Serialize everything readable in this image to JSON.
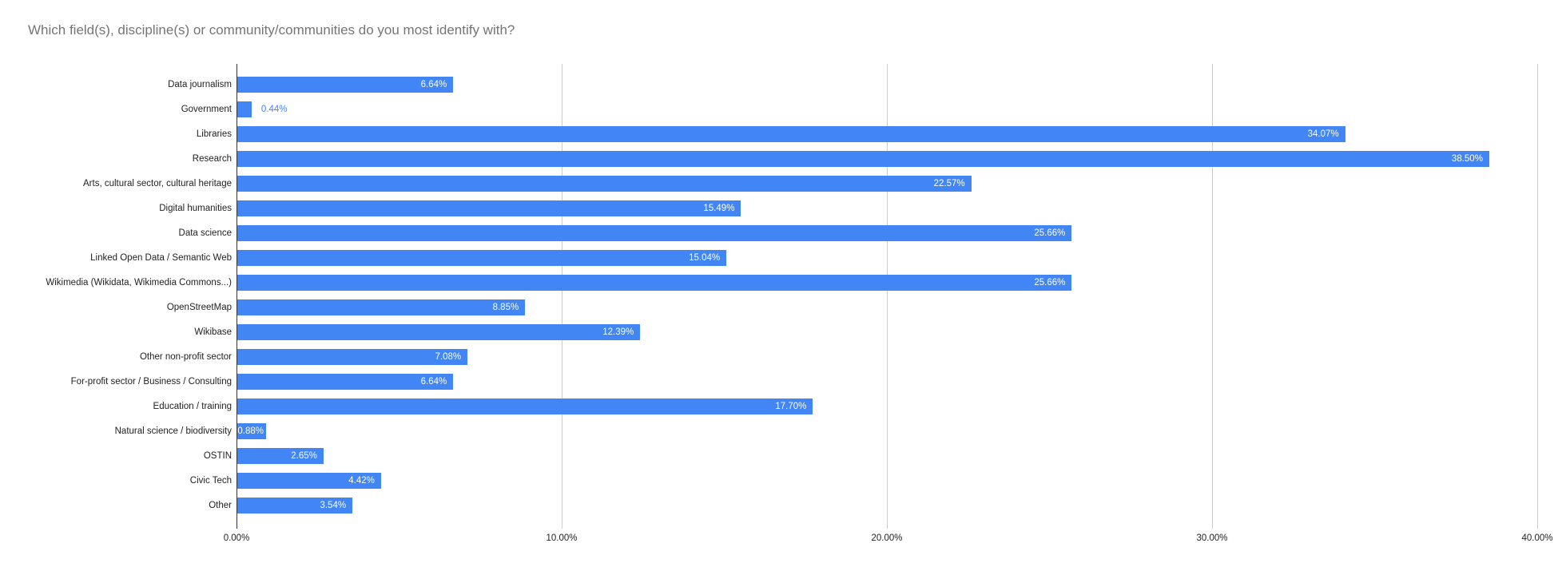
{
  "title": "Which field(s), discipline(s) or community/communities do you most identify with?",
  "colors": {
    "bar": "#4285f4",
    "value_label_inside": "#ffffff",
    "value_label_outside": "#4285f4",
    "gridline": "#cccccc",
    "axis_line": "#333333",
    "axis_text": "#222222",
    "title_text": "#757575",
    "background": "#ffffff"
  },
  "chart_data": {
    "type": "bar",
    "orientation": "horizontal",
    "title": "Which field(s), discipline(s) or community/communities do you most identify with?",
    "categories": [
      "Data journalism",
      "Government",
      "Libraries",
      "Research",
      "Arts, cultural sector, cultural heritage",
      "Digital humanities",
      "Data science",
      "Linked Open Data / Semantic Web",
      "Wikimedia (Wikidata, Wikimedia Commons...)",
      "OpenStreetMap",
      "Wikibase",
      "Other non-profit sector",
      "For-profit sector / Business / Consulting",
      "Education / training",
      "Natural science / biodiversity",
      "OSTIN",
      "Civic Tech",
      "Other"
    ],
    "values": [
      6.64,
      0.44,
      34.07,
      38.5,
      22.57,
      15.49,
      25.66,
      15.04,
      25.66,
      8.85,
      12.39,
      7.08,
      6.64,
      17.7,
      0.88,
      2.65,
      4.42,
      3.54
    ],
    "value_labels": [
      "6.64%",
      "0.44%",
      "34.07%",
      "38.50%",
      "22.57%",
      "15.49%",
      "25.66%",
      "15.04%",
      "25.66%",
      "8.85%",
      "12.39%",
      "7.08%",
      "6.64%",
      "17.70%",
      "0.88%",
      "2.65%",
      "4.42%",
      "3.54%"
    ],
    "x_ticks": [
      0,
      10,
      20,
      30,
      40
    ],
    "x_tick_labels": [
      "0.00%",
      "10.00%",
      "20.00%",
      "30.00%",
      "40.00%"
    ],
    "xlim": [
      0,
      40
    ],
    "grid": true,
    "legend": "none"
  }
}
